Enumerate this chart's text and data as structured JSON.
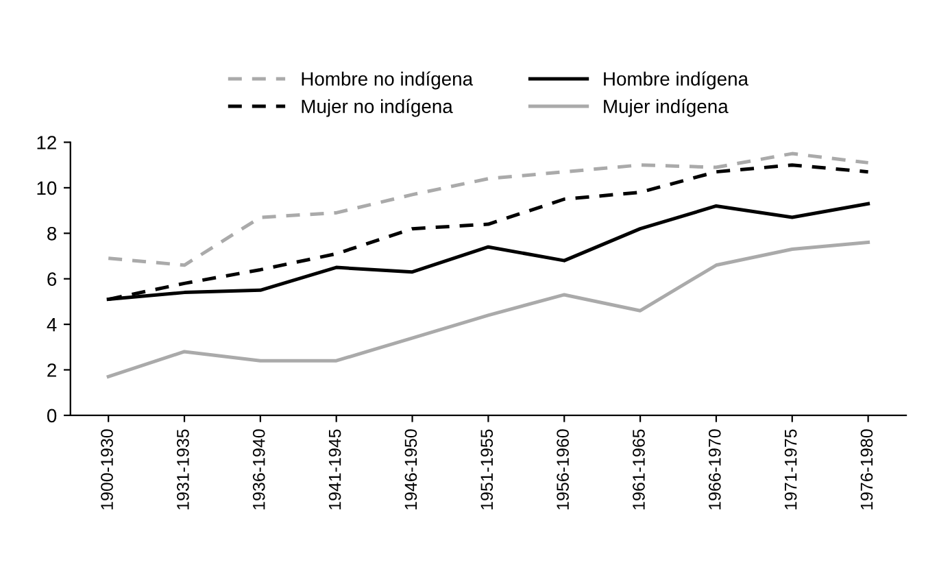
{
  "chart_data": {
    "type": "line",
    "categories": [
      "1900-1930",
      "1931-1935",
      "1936-1940",
      "1941-1945",
      "1946-1950",
      "1951-1955",
      "1956-1960",
      "1961-1965",
      "1966-1970",
      "1971-1975",
      "1976-1980"
    ],
    "series": [
      {
        "name": "Hombre no indígena",
        "color": "#aaaaaa",
        "line_style": "dashed",
        "values": [
          6.9,
          6.6,
          8.7,
          8.9,
          9.7,
          10.4,
          10.7,
          11.0,
          10.9,
          11.5,
          11.1
        ]
      },
      {
        "name": "Mujer no indígena",
        "color": "#000000",
        "line_style": "dashed",
        "values": [
          5.1,
          5.8,
          6.4,
          7.1,
          8.2,
          8.4,
          9.5,
          9.8,
          10.7,
          11.0,
          10.7
        ]
      },
      {
        "name": "Hombre indígena",
        "color": "#000000",
        "line_style": "solid",
        "values": [
          5.1,
          5.4,
          5.5,
          6.5,
          6.3,
          7.4,
          6.8,
          8.2,
          9.2,
          8.7,
          9.3
        ]
      },
      {
        "name": "Mujer indígena",
        "color": "#aaaaaa",
        "line_style": "solid",
        "values": [
          1.7,
          2.8,
          2.4,
          2.4,
          3.4,
          4.4,
          5.3,
          4.6,
          6.6,
          7.3,
          7.6
        ]
      }
    ],
    "ylim": [
      0,
      12
    ],
    "yticks": [
      0,
      2,
      4,
      6,
      8,
      10,
      12
    ],
    "grid": false,
    "legend": "top",
    "marker": "none"
  }
}
